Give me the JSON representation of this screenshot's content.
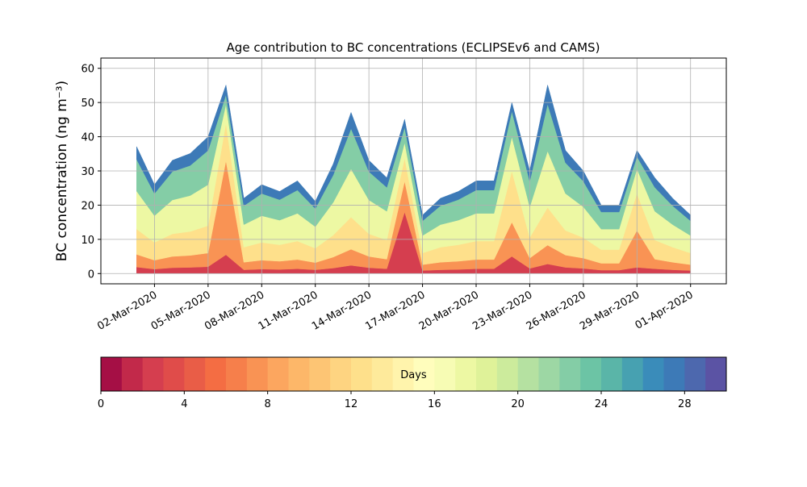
{
  "chart_data": {
    "type": "stacked_area",
    "title": "Age contribution to BC concentrations (ECLIPSEv6 and CAMS)",
    "y_label": "BC concentration (ng m⁻³)",
    "x": [
      "2020-03-01",
      "2020-03-02",
      "2020-03-03",
      "2020-03-04",
      "2020-03-05",
      "2020-03-06",
      "2020-03-07",
      "2020-03-08",
      "2020-03-09",
      "2020-03-10",
      "2020-03-11",
      "2020-03-12",
      "2020-03-13",
      "2020-03-14",
      "2020-03-15",
      "2020-03-16",
      "2020-03-17",
      "2020-03-18",
      "2020-03-19",
      "2020-03-20",
      "2020-03-21",
      "2020-03-22",
      "2020-03-23",
      "2020-03-24",
      "2020-03-25",
      "2020-03-26",
      "2020-03-27",
      "2020-03-28",
      "2020-03-29",
      "2020-03-30",
      "2020-03-31",
      "2020-04-01"
    ],
    "series": [
      {
        "color": "#d53e4f",
        "values": [
          1.9,
          1.3,
          1.7,
          1.8,
          2,
          5.5,
          1.1,
          1.3,
          1.2,
          1.4,
          1.1,
          1.6,
          2.4,
          1.7,
          1.4,
          18,
          0.9,
          1.1,
          1.2,
          1.4,
          1.4,
          5,
          1.5,
          2.8,
          1.8,
          1.5,
          1,
          1,
          1.8,
          1.4,
          1.1,
          0.9
        ]
      },
      {
        "color": "#f99354",
        "values": [
          3.7,
          2.6,
          3.3,
          3.5,
          4,
          27.5,
          2.2,
          2.6,
          2.4,
          2.7,
          2.1,
          3.2,
          4.7,
          3.3,
          2.8,
          9,
          1.7,
          2.2,
          2.4,
          2.7,
          2.7,
          10,
          3,
          5.5,
          3.6,
          3,
          2,
          2,
          10.8,
          2.8,
          2.2,
          1.7
        ]
      },
      {
        "color": "#fee08b",
        "values": [
          7.4,
          5.2,
          6.6,
          7,
          8,
          11,
          4.4,
          5.2,
          4.8,
          5.4,
          4.2,
          6.4,
          9.4,
          6.6,
          5.6,
          6.8,
          3.4,
          4.4,
          4.8,
          5.4,
          5.4,
          15,
          6,
          11,
          7.2,
          6,
          4,
          4,
          10.8,
          5.6,
          4.4,
          3.4
        ]
      },
      {
        "color": "#edf8a3",
        "values": [
          11.1,
          7.8,
          9.9,
          10.5,
          12,
          5.5,
          6.6,
          7.8,
          7.2,
          8.1,
          6.3,
          9.6,
          14.1,
          9.9,
          8.4,
          4.5,
          5.1,
          6.6,
          7.2,
          8.1,
          8.1,
          10,
          9,
          16.5,
          10.8,
          9,
          6,
          6,
          7.2,
          8.4,
          6.6,
          5.1
        ]
      },
      {
        "color": "#84cda6",
        "values": [
          9.3,
          6.5,
          8.3,
          8.8,
          10,
          2.8,
          5.5,
          6.5,
          6,
          6.8,
          5.3,
          8,
          11.8,
          8.3,
          7,
          4.5,
          4.3,
          5.5,
          6,
          6.8,
          6.8,
          7.5,
          7.5,
          13.8,
          9,
          7.5,
          5,
          5,
          3.6,
          7,
          5.5,
          4.3
        ]
      },
      {
        "color": "#3d7ab7",
        "values": [
          3.7,
          2.6,
          3.3,
          3.5,
          4,
          2.8,
          2.2,
          2.6,
          2.4,
          2.7,
          2.1,
          3.2,
          4.7,
          3.3,
          2.8,
          2.3,
          1.7,
          2.2,
          2.4,
          2.7,
          2.7,
          2.5,
          3,
          5.5,
          3.6,
          3,
          2,
          2,
          1.8,
          2.8,
          2.2,
          1.7
        ]
      }
    ],
    "xlim": [
      "2020-02-28",
      "2020-04-03"
    ],
    "xticks": [
      {
        "value": "2020-03-02",
        "label": "02-Mar-2020"
      },
      {
        "value": "2020-03-05",
        "label": "05-Mar-2020"
      },
      {
        "value": "2020-03-08",
        "label": "08-Mar-2020"
      },
      {
        "value": "2020-03-11",
        "label": "11-Mar-2020"
      },
      {
        "value": "2020-03-14",
        "label": "14-Mar-2020"
      },
      {
        "value": "2020-03-17",
        "label": "17-Mar-2020"
      },
      {
        "value": "2020-03-20",
        "label": "20-Mar-2020"
      },
      {
        "value": "2020-03-23",
        "label": "23-Mar-2020"
      },
      {
        "value": "2020-03-26",
        "label": "26-Mar-2020"
      },
      {
        "value": "2020-03-29",
        "label": "29-Mar-2020"
      },
      {
        "value": "2020-04-01",
        "label": "01-Apr-2020"
      }
    ],
    "ylim": [
      -3,
      63
    ],
    "yticks": [
      0,
      10,
      20,
      30,
      40,
      50,
      60
    ],
    "grid": true,
    "colorbar": {
      "label": "Days",
      "lim": [
        0,
        30
      ],
      "ticks": [
        0,
        4,
        8,
        12,
        16,
        20,
        24,
        28
      ],
      "colors": [
        "#a50f45",
        "#c2294a",
        "#d53e4f",
        "#e04c4a",
        "#e95d47",
        "#f46d43",
        "#f67f4b",
        "#f99354",
        "#fca65f",
        "#fdb769",
        "#fdc574",
        "#fed481",
        "#fee08b",
        "#feea9b",
        "#fff4ac",
        "#fffdbc",
        "#f7fcb4",
        "#edf8a3",
        "#dff299",
        "#cceb9c",
        "#b5e1a1",
        "#9dd7a4",
        "#84cda6",
        "#6cc4a5",
        "#5ab5a8",
        "#47a1b1",
        "#3a8cba",
        "#3d7ab7",
        "#4d68ae",
        "#5b53a4"
      ]
    }
  }
}
